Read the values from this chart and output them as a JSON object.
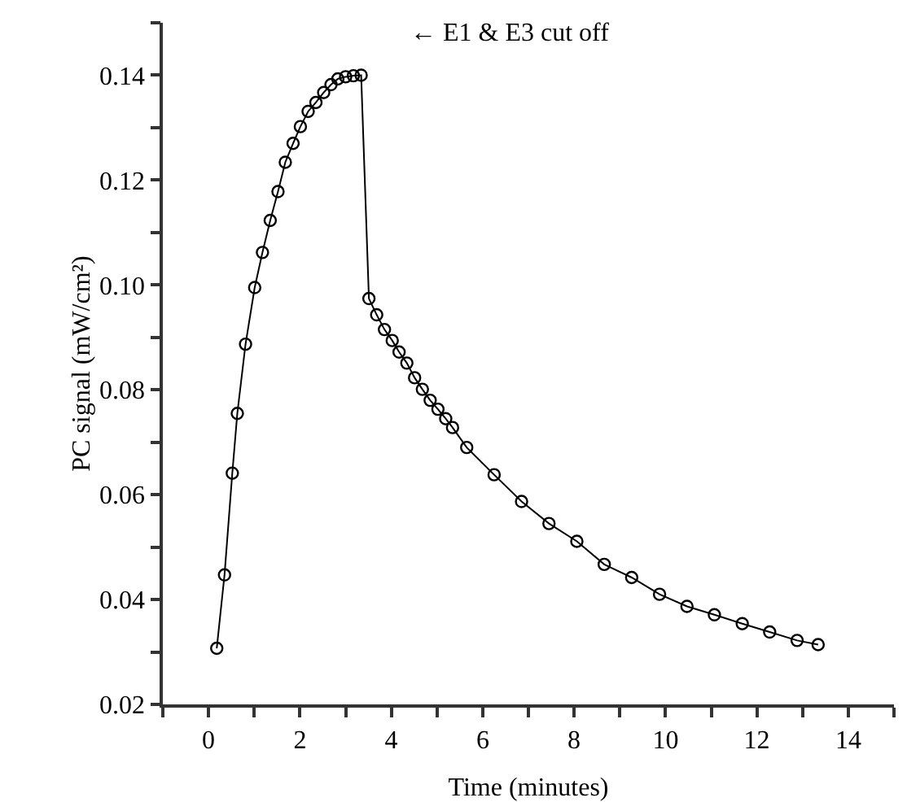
{
  "chart_data": {
    "type": "line",
    "xlabel": "Time (minutes)",
    "ylabel": "PC signal (mW/cm²)",
    "marker": "circle",
    "line_style": "solid",
    "annotations": [
      "← E1 & E3 cut off"
    ],
    "xlim": [
      -1,
      15
    ],
    "xticks": [
      {
        "value": -1,
        "label": null
      },
      {
        "value": 0,
        "label": "0"
      },
      {
        "value": 1,
        "label": null
      },
      {
        "value": 2,
        "label": "2"
      },
      {
        "value": 3,
        "label": null
      },
      {
        "value": 4,
        "label": "4"
      },
      {
        "value": 5,
        "label": null
      },
      {
        "value": 6,
        "label": "6"
      },
      {
        "value": 7,
        "label": null
      },
      {
        "value": 8,
        "label": "8"
      },
      {
        "value": 9,
        "label": null
      },
      {
        "value": 10,
        "label": "10"
      },
      {
        "value": 11,
        "label": null
      },
      {
        "value": 12,
        "label": "12"
      },
      {
        "value": 13,
        "label": null
      },
      {
        "value": 14,
        "label": "14"
      },
      {
        "value": 15,
        "label": null
      }
    ],
    "ylim": [
      0.02,
      0.15
    ],
    "yticks": [
      {
        "value": 0.02,
        "label": "0.02"
      },
      {
        "value": 0.03,
        "label": null
      },
      {
        "value": 0.04,
        "label": "0.04"
      },
      {
        "value": 0.05,
        "label": null
      },
      {
        "value": 0.06,
        "label": "0.06"
      },
      {
        "value": 0.07,
        "label": null
      },
      {
        "value": 0.08,
        "label": "0.08"
      },
      {
        "value": 0.09,
        "label": null
      },
      {
        "value": 0.1,
        "label": "0.10"
      },
      {
        "value": 0.11,
        "label": null
      },
      {
        "value": 0.12,
        "label": "0.12"
      },
      {
        "value": 0.13,
        "label": null
      },
      {
        "value": 0.14,
        "label": "0.14"
      },
      {
        "value": 0.15,
        "label": null
      }
    ],
    "series": [
      {
        "color": "#000000",
        "x": [
          0.18,
          0.35,
          0.52,
          0.63,
          0.81,
          1.01,
          1.18,
          1.35,
          1.52,
          1.68,
          1.85,
          2.01,
          2.18,
          2.35,
          2.52,
          2.68,
          2.83,
          3.0,
          3.17,
          3.34,
          3.51,
          3.68,
          3.85,
          4.02,
          4.17,
          4.34,
          4.51,
          4.68,
          4.85,
          5.02,
          5.19,
          5.34,
          5.65,
          6.25,
          6.85,
          7.45,
          8.06,
          8.66,
          9.26,
          9.87,
          10.47,
          11.07,
          11.68,
          12.28,
          12.88,
          13.34
        ],
        "values": [
          0.0307,
          0.0447,
          0.0641,
          0.0755,
          0.0887,
          0.0995,
          0.1062,
          0.1123,
          0.1178,
          0.1234,
          0.127,
          0.1302,
          0.1331,
          0.1348,
          0.1367,
          0.1382,
          0.1393,
          0.1397,
          0.1399,
          0.14,
          0.0974,
          0.0943,
          0.0915,
          0.0894,
          0.0872,
          0.0851,
          0.0823,
          0.0801,
          0.078,
          0.0763,
          0.0745,
          0.0728,
          0.069,
          0.0638,
          0.0587,
          0.0545,
          0.0511,
          0.0467,
          0.0442,
          0.041,
          0.0387,
          0.0371,
          0.0354,
          0.0338,
          0.0322,
          0.0314
        ]
      }
    ]
  }
}
